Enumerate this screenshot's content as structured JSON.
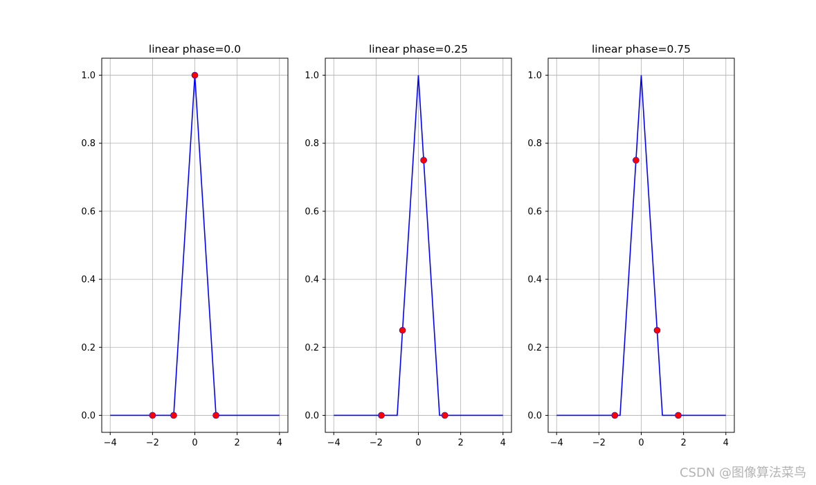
{
  "watermark": "CSDN @图像算法菜鸟",
  "colors": {
    "line": "#0000ff",
    "points": "#ff0000",
    "grid": "#b0b0b0",
    "axes": "#000000"
  },
  "chart_data": [
    {
      "type": "line",
      "title": "linear phase=0.0",
      "xlim": [
        -4.4,
        4.4
      ],
      "ylim": [
        -0.05,
        1.05
      ],
      "xticks": [
        -4,
        -2,
        0,
        2,
        4
      ],
      "xtick_labels": [
        "−4",
        "−2",
        "0",
        "2",
        "4"
      ],
      "yticks": [
        0.0,
        0.2,
        0.4,
        0.6,
        0.8,
        1.0
      ],
      "ytick_labels": [
        "0.0",
        "0.2",
        "0.4",
        "0.6",
        "0.8",
        "1.0"
      ],
      "grid": true,
      "line": {
        "x": [
          -4,
          -1,
          0,
          1,
          4
        ],
        "y": [
          0,
          0,
          1,
          0,
          0
        ]
      },
      "points": {
        "x": [
          -2,
          -1,
          0,
          1
        ],
        "y": [
          0,
          0,
          1,
          0
        ]
      }
    },
    {
      "type": "line",
      "title": "linear phase=0.25",
      "xlim": [
        -4.4,
        4.4
      ],
      "ylim": [
        -0.05,
        1.05
      ],
      "xticks": [
        -4,
        -2,
        0,
        2,
        4
      ],
      "xtick_labels": [
        "−4",
        "−2",
        "0",
        "2",
        "4"
      ],
      "yticks": [
        0.0,
        0.2,
        0.4,
        0.6,
        0.8,
        1.0
      ],
      "ytick_labels": [
        "0.0",
        "0.2",
        "0.4",
        "0.6",
        "0.8",
        "1.0"
      ],
      "grid": true,
      "line": {
        "x": [
          -4,
          -1,
          0,
          1,
          4
        ],
        "y": [
          0,
          0,
          1,
          0,
          0
        ]
      },
      "points": {
        "x": [
          -1.75,
          -0.75,
          0.25,
          1.25
        ],
        "y": [
          0,
          0.25,
          0.75,
          0
        ]
      }
    },
    {
      "type": "line",
      "title": "linear phase=0.75",
      "xlim": [
        -4.4,
        4.4
      ],
      "ylim": [
        -0.05,
        1.05
      ],
      "xticks": [
        -4,
        -2,
        0,
        2,
        4
      ],
      "xtick_labels": [
        "−4",
        "−2",
        "0",
        "2",
        "4"
      ],
      "yticks": [
        0.0,
        0.2,
        0.4,
        0.6,
        0.8,
        1.0
      ],
      "ytick_labels": [
        "0.0",
        "0.2",
        "0.4",
        "0.6",
        "0.8",
        "1.0"
      ],
      "grid": true,
      "line": {
        "x": [
          -4,
          -1,
          0,
          1,
          4
        ],
        "y": [
          0,
          0,
          1,
          0,
          0
        ]
      },
      "points": {
        "x": [
          -1.25,
          -0.25,
          0.75,
          1.75
        ],
        "y": [
          0,
          0.75,
          0.25,
          0
        ]
      }
    }
  ]
}
